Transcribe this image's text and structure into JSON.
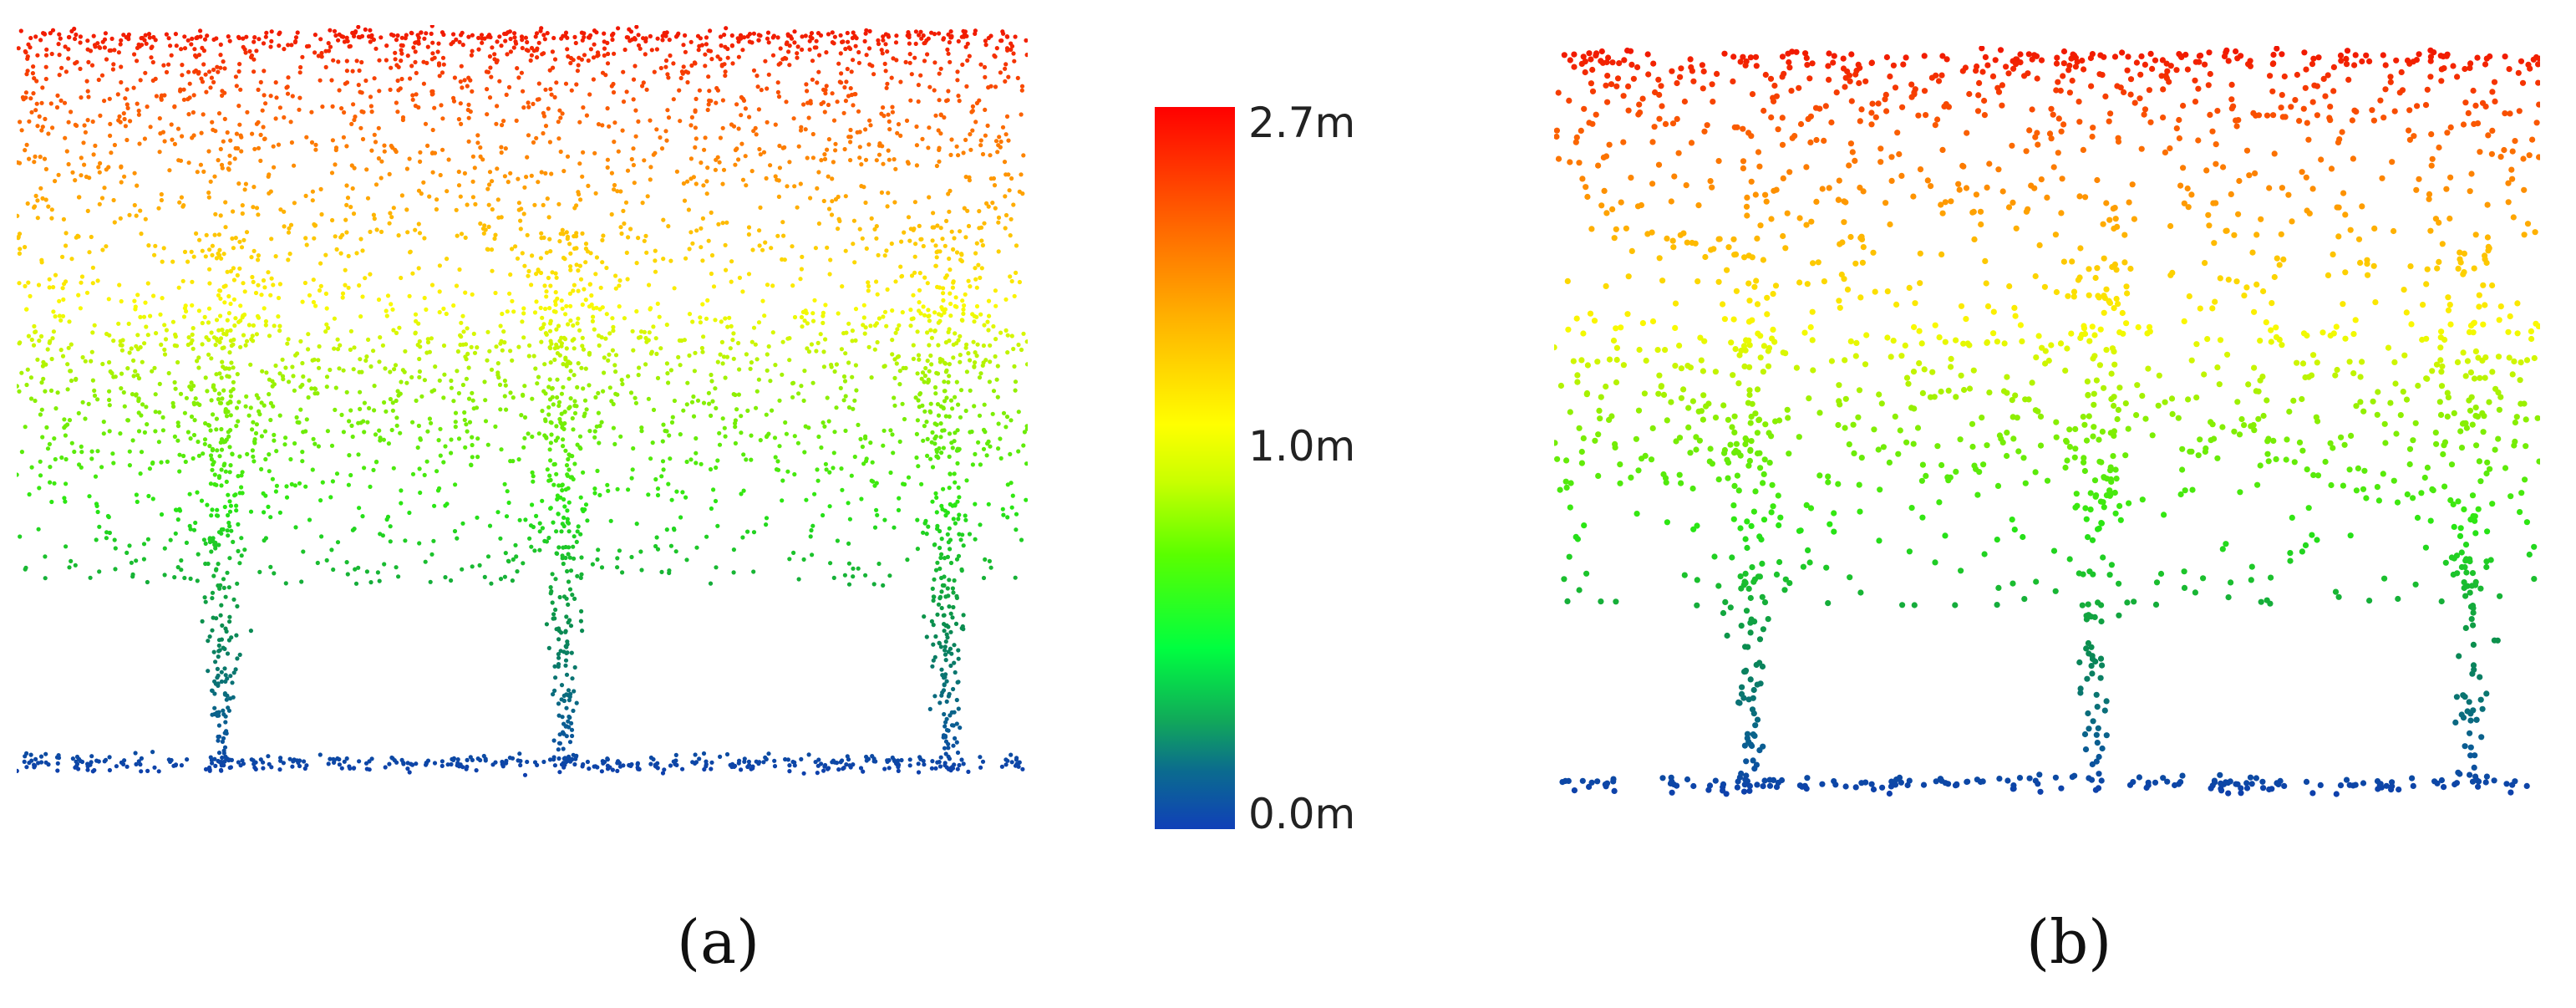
{
  "colorbar": {
    "max_label": "2.7m",
    "mid_label": "1.0m",
    "min_label": "0.0m"
  },
  "panels": [
    {
      "caption": "(a)",
      "density": "dense"
    },
    {
      "caption": "(b)",
      "density": "sparse"
    }
  ],
  "colors": {
    "high": "#ff1a00",
    "mid_high": "#ffa500",
    "mid": "#ffff00",
    "mid_low": "#33ee00",
    "low_mid": "#0a7a52",
    "low": "#1a1acc"
  }
}
